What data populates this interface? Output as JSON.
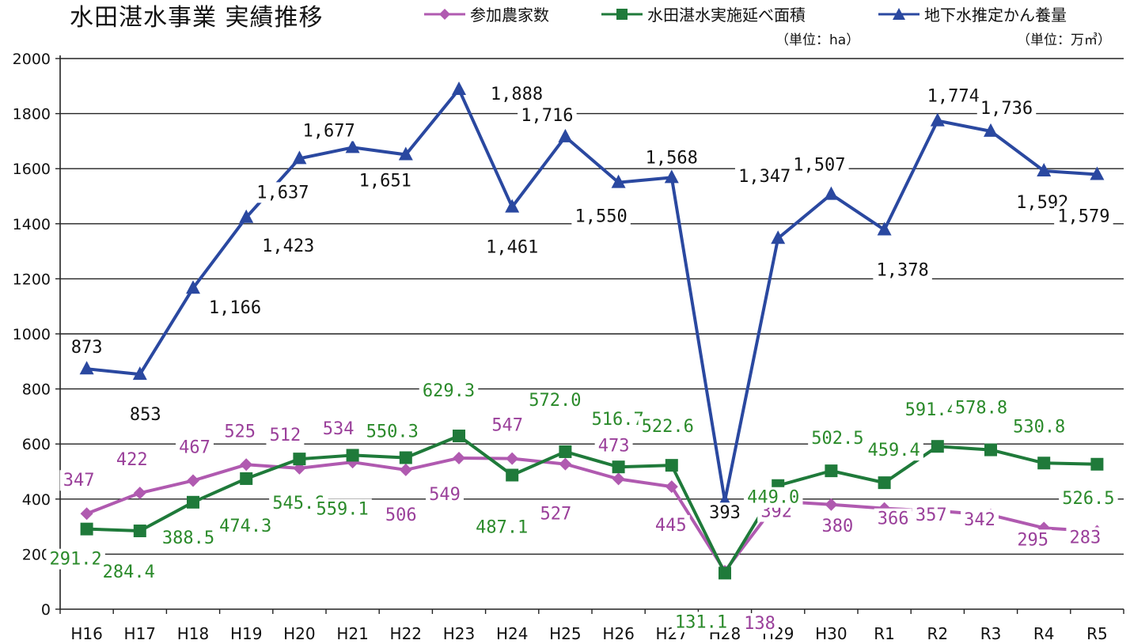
{
  "chart_data": {
    "type": "line",
    "title": "水田湛水事業  実績推移",
    "categories": [
      "H16",
      "H17",
      "H18",
      "H19",
      "H20",
      "H21",
      "H22",
      "H23",
      "H24",
      "H25",
      "H26",
      "H27",
      "H28",
      "H29",
      "H30",
      "R1",
      "R2",
      "R3",
      "R4",
      "R5"
    ],
    "yticks": [
      0,
      200,
      400,
      600,
      800,
      1000,
      1200,
      1400,
      1600,
      1800,
      2000
    ],
    "ylim": [
      0,
      2000
    ],
    "grid": true,
    "legend": "top-right",
    "series": [
      {
        "name": "参加農家数",
        "marker": "diamond",
        "color": "#b05ab0",
        "label_color": "#9a3f9a",
        "values": [
          347,
          422,
          467,
          525,
          512,
          534,
          506,
          549,
          547,
          527,
          473,
          445,
          138,
          392,
          380,
          366,
          357,
          342,
          295,
          283
        ],
        "labels": [
          "347",
          "422",
          "467",
          "525",
          "512",
          "534",
          "506",
          "549",
          "547",
          "527",
          "473",
          "445",
          "138",
          "392",
          "380",
          "366",
          "357",
          "342",
          "295",
          "283"
        ]
      },
      {
        "name": "水田湛水実施延べ面積",
        "unit": "（単位：ha）",
        "marker": "square",
        "color": "#1f7a3a",
        "label_color": "#2a8a2a",
        "values": [
          291.2,
          284.4,
          388.5,
          474.3,
          545.6,
          559.1,
          550.3,
          629.3,
          487.1,
          572.0,
          516.7,
          522.6,
          131.1,
          449.0,
          502.5,
          459.4,
          591.4,
          578.8,
          530.8,
          526.5
        ],
        "labels": [
          "291.2",
          "284.4",
          "388.5",
          "474.3",
          "545.6",
          "559.1",
          "550.3",
          "629.3",
          "487.1",
          "572.0",
          "516.7",
          "522.6",
          "131.1",
          "449.0",
          "502.5",
          "459.4",
          "591.4",
          "578.8",
          "530.8",
          "526.5"
        ]
      },
      {
        "name": "地下水推定かん養量",
        "unit": "（単位：万㎥）",
        "marker": "triangle",
        "color": "#2a48a0",
        "label_color": "#111111",
        "values": [
          873,
          853,
          1166,
          1423,
          1637,
          1677,
          1651,
          1888,
          1461,
          1716,
          1550,
          1568,
          393,
          1347,
          1507,
          1378,
          1774,
          1736,
          1592,
          1579
        ],
        "labels": [
          "873",
          "853",
          "1,166",
          "1,423",
          "1,637",
          "1,677",
          "1,651",
          "1,888",
          "1,461",
          "1,716",
          "1,550",
          "1,568",
          "393",
          "1,347",
          "1,507",
          "1,378",
          "1,774",
          "1,736",
          "1,592",
          "1,579"
        ]
      }
    ]
  }
}
